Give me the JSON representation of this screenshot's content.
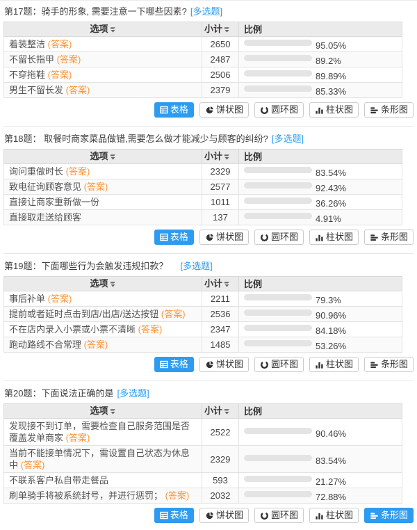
{
  "colors": {
    "accent_blue": "#2d9cf0",
    "answer_orange": "#f9963c",
    "bar_track_gray": "#e4e4e4",
    "header_bg": "#ebebeb"
  },
  "answer_label": "(答案)",
  "table_headers": {
    "option": "选项",
    "subtotal": "小计",
    "ratio": "比例"
  },
  "chart_buttons": [
    {
      "id": "table",
      "label": "表格"
    },
    {
      "id": "pie",
      "label": "饼状图"
    },
    {
      "id": "donut",
      "label": "圆环图"
    },
    {
      "id": "column",
      "label": "柱状图"
    },
    {
      "id": "bar",
      "label": "条形图"
    }
  ],
  "questions": [
    {
      "title": "第17题：骑手的形象, 需要注意一下哪些因素?",
      "tag": "[多选题]",
      "bar_active": false,
      "rows": [
        {
          "option": "着装整洁",
          "answer": true,
          "count": "2650",
          "percent": "95.05%",
          "value": 95.05
        },
        {
          "option": "不留长指甲",
          "answer": true,
          "count": "2487",
          "percent": "89.2%",
          "value": 89.2
        },
        {
          "option": "不穿拖鞋",
          "answer": true,
          "count": "2506",
          "percent": "89.89%",
          "value": 89.89
        },
        {
          "option": "男生不留长发",
          "answer": true,
          "count": "2379",
          "percent": "85.33%",
          "value": 85.33
        }
      ]
    },
    {
      "title": "第18题： 取餐时商家菜品做错,需要怎么做才能减少与顾客的纠纷?",
      "tag": "[多选题]",
      "bar_active": false,
      "rows": [
        {
          "option": "询问重做时长",
          "answer": true,
          "count": "2329",
          "percent": "83.54%",
          "value": 83.54
        },
        {
          "option": "致电征询顾客意见",
          "answer": true,
          "count": "2577",
          "percent": "92.43%",
          "value": 92.43
        },
        {
          "option": "直接让商家重新做一份",
          "answer": false,
          "count": "1011",
          "percent": "36.26%",
          "value": 36.26
        },
        {
          "option": "直接取走送给顾客",
          "answer": false,
          "count": "137",
          "percent": "4.91%",
          "value": 4.91
        }
      ]
    },
    {
      "title": "第19题：下面哪些行为会触发违规扣款？　",
      "tag": "[多选题]",
      "bar_active": false,
      "rows": [
        {
          "option": "事后补单",
          "answer": true,
          "count": "2211",
          "percent": "79.3%",
          "value": 79.3
        },
        {
          "option": "提前或者延时点击到店/出店/送达按钮",
          "answer": true,
          "count": "2536",
          "percent": "90.96%",
          "value": 90.96
        },
        {
          "option": "不在店内录入小票或小票不清晰",
          "answer": true,
          "count": "2347",
          "percent": "84.18%",
          "value": 84.18
        },
        {
          "option": "跑动路线不合常理",
          "answer": true,
          "count": "1485",
          "percent": "53.26%",
          "value": 53.26
        }
      ]
    },
    {
      "title": "第20题：下面说法正确的是",
      "tag": "[多选题]",
      "bar_active": true,
      "rows": [
        {
          "option": "发现接不到订单，需要检查自己服务范围是否覆盖发单商家",
          "answer": true,
          "count": "2522",
          "percent": "90.46%",
          "value": 90.46
        },
        {
          "option": "当前不能接单情况下，需设置自己状态为休息中",
          "answer": true,
          "count": "2329",
          "percent": "83.54%",
          "value": 83.54
        },
        {
          "option": "不联系客户私自带走餐品",
          "answer": false,
          "count": "593",
          "percent": "21.27%",
          "value": 21.27
        },
        {
          "option": "刷单骑手将被系统封号，并进行惩罚；",
          "answer": true,
          "count": "2032",
          "percent": "72.88%",
          "value": 72.88
        }
      ]
    }
  ]
}
